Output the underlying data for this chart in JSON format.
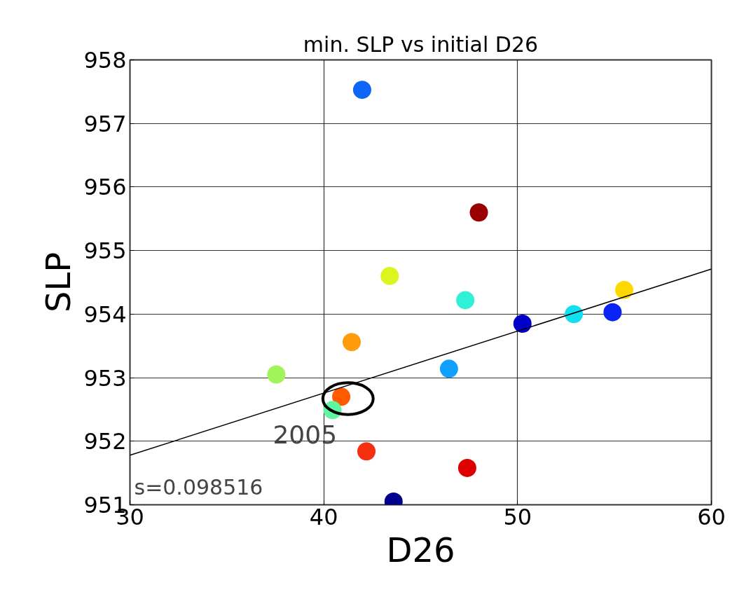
{
  "chart_data": {
    "type": "scatter",
    "title": "min. SLP vs initial D26",
    "xlabel": "D26",
    "ylabel": "SLP",
    "xlim": [
      30,
      60
    ],
    "xticks": [
      30,
      40,
      50,
      60
    ],
    "ylim": [
      951,
      958
    ],
    "yticks": [
      951,
      952,
      953,
      954,
      955,
      956,
      957,
      958
    ],
    "grid": true,
    "series": [
      {
        "marker": "circle",
        "x": [
          41.98,
          48.0,
          43.4,
          47.3,
          41.44,
          55.5,
          50.25,
          52.9,
          54.9,
          46.46,
          37.55,
          40.9,
          40.45,
          42.2,
          47.4,
          43.6
        ],
        "values": [
          957.53,
          955.6,
          954.6,
          954.22,
          953.56,
          954.38,
          953.85,
          954.0,
          954.03,
          953.14,
          953.05,
          952.7,
          952.49,
          951.84,
          951.58,
          951.05
        ],
        "colors": [
          "#0f66f5",
          "#9b0000",
          "#dcf51e",
          "#30f0d8",
          "#ff9c0c",
          "#ffd800",
          "#0000c8",
          "#10e0f0",
          "#0a24f5",
          "#10a0ff",
          "#a0f55a",
          "#ff5a00",
          "#60f5a0",
          "#f53010",
          "#dc0000",
          "#00008c"
        ]
      },
      {
        "type": "line",
        "color": "#000000",
        "x": [
          30,
          60
        ],
        "values": [
          951.78,
          954.71
        ]
      }
    ],
    "annotations": [
      "s=0.098516",
      {
        "text": "2005",
        "x": 40.9,
        "y": 952.7
      }
    ]
  }
}
